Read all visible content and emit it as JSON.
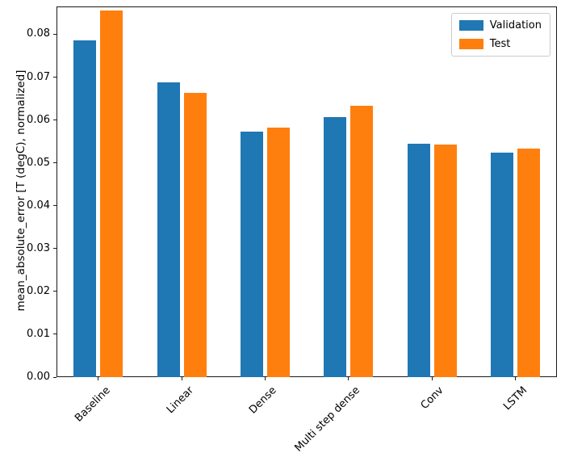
{
  "chart_data": {
    "type": "bar",
    "title": "",
    "xlabel": "",
    "ylabel": "mean_absolute_error [T (degC), normalized]",
    "categories": [
      "Baseline",
      "Linear",
      "Dense",
      "Multi step dense",
      "Conv",
      "LSTM"
    ],
    "series": [
      {
        "name": "Validation",
        "color": "#1f77b4",
        "values": [
          0.0785,
          0.0687,
          0.0572,
          0.0607,
          0.0545,
          0.0524
        ]
      },
      {
        "name": "Test",
        "color": "#ff7f0e",
        "values": [
          0.0855,
          0.0663,
          0.0583,
          0.0634,
          0.0543,
          0.0534
        ]
      }
    ],
    "ylim": [
      0,
      0.0865
    ],
    "yticks": [
      "0.00",
      "0.01",
      "0.02",
      "0.03",
      "0.04",
      "0.05",
      "0.06",
      "0.07",
      "0.08"
    ],
    "grid": false,
    "legend_position": "upper right"
  }
}
